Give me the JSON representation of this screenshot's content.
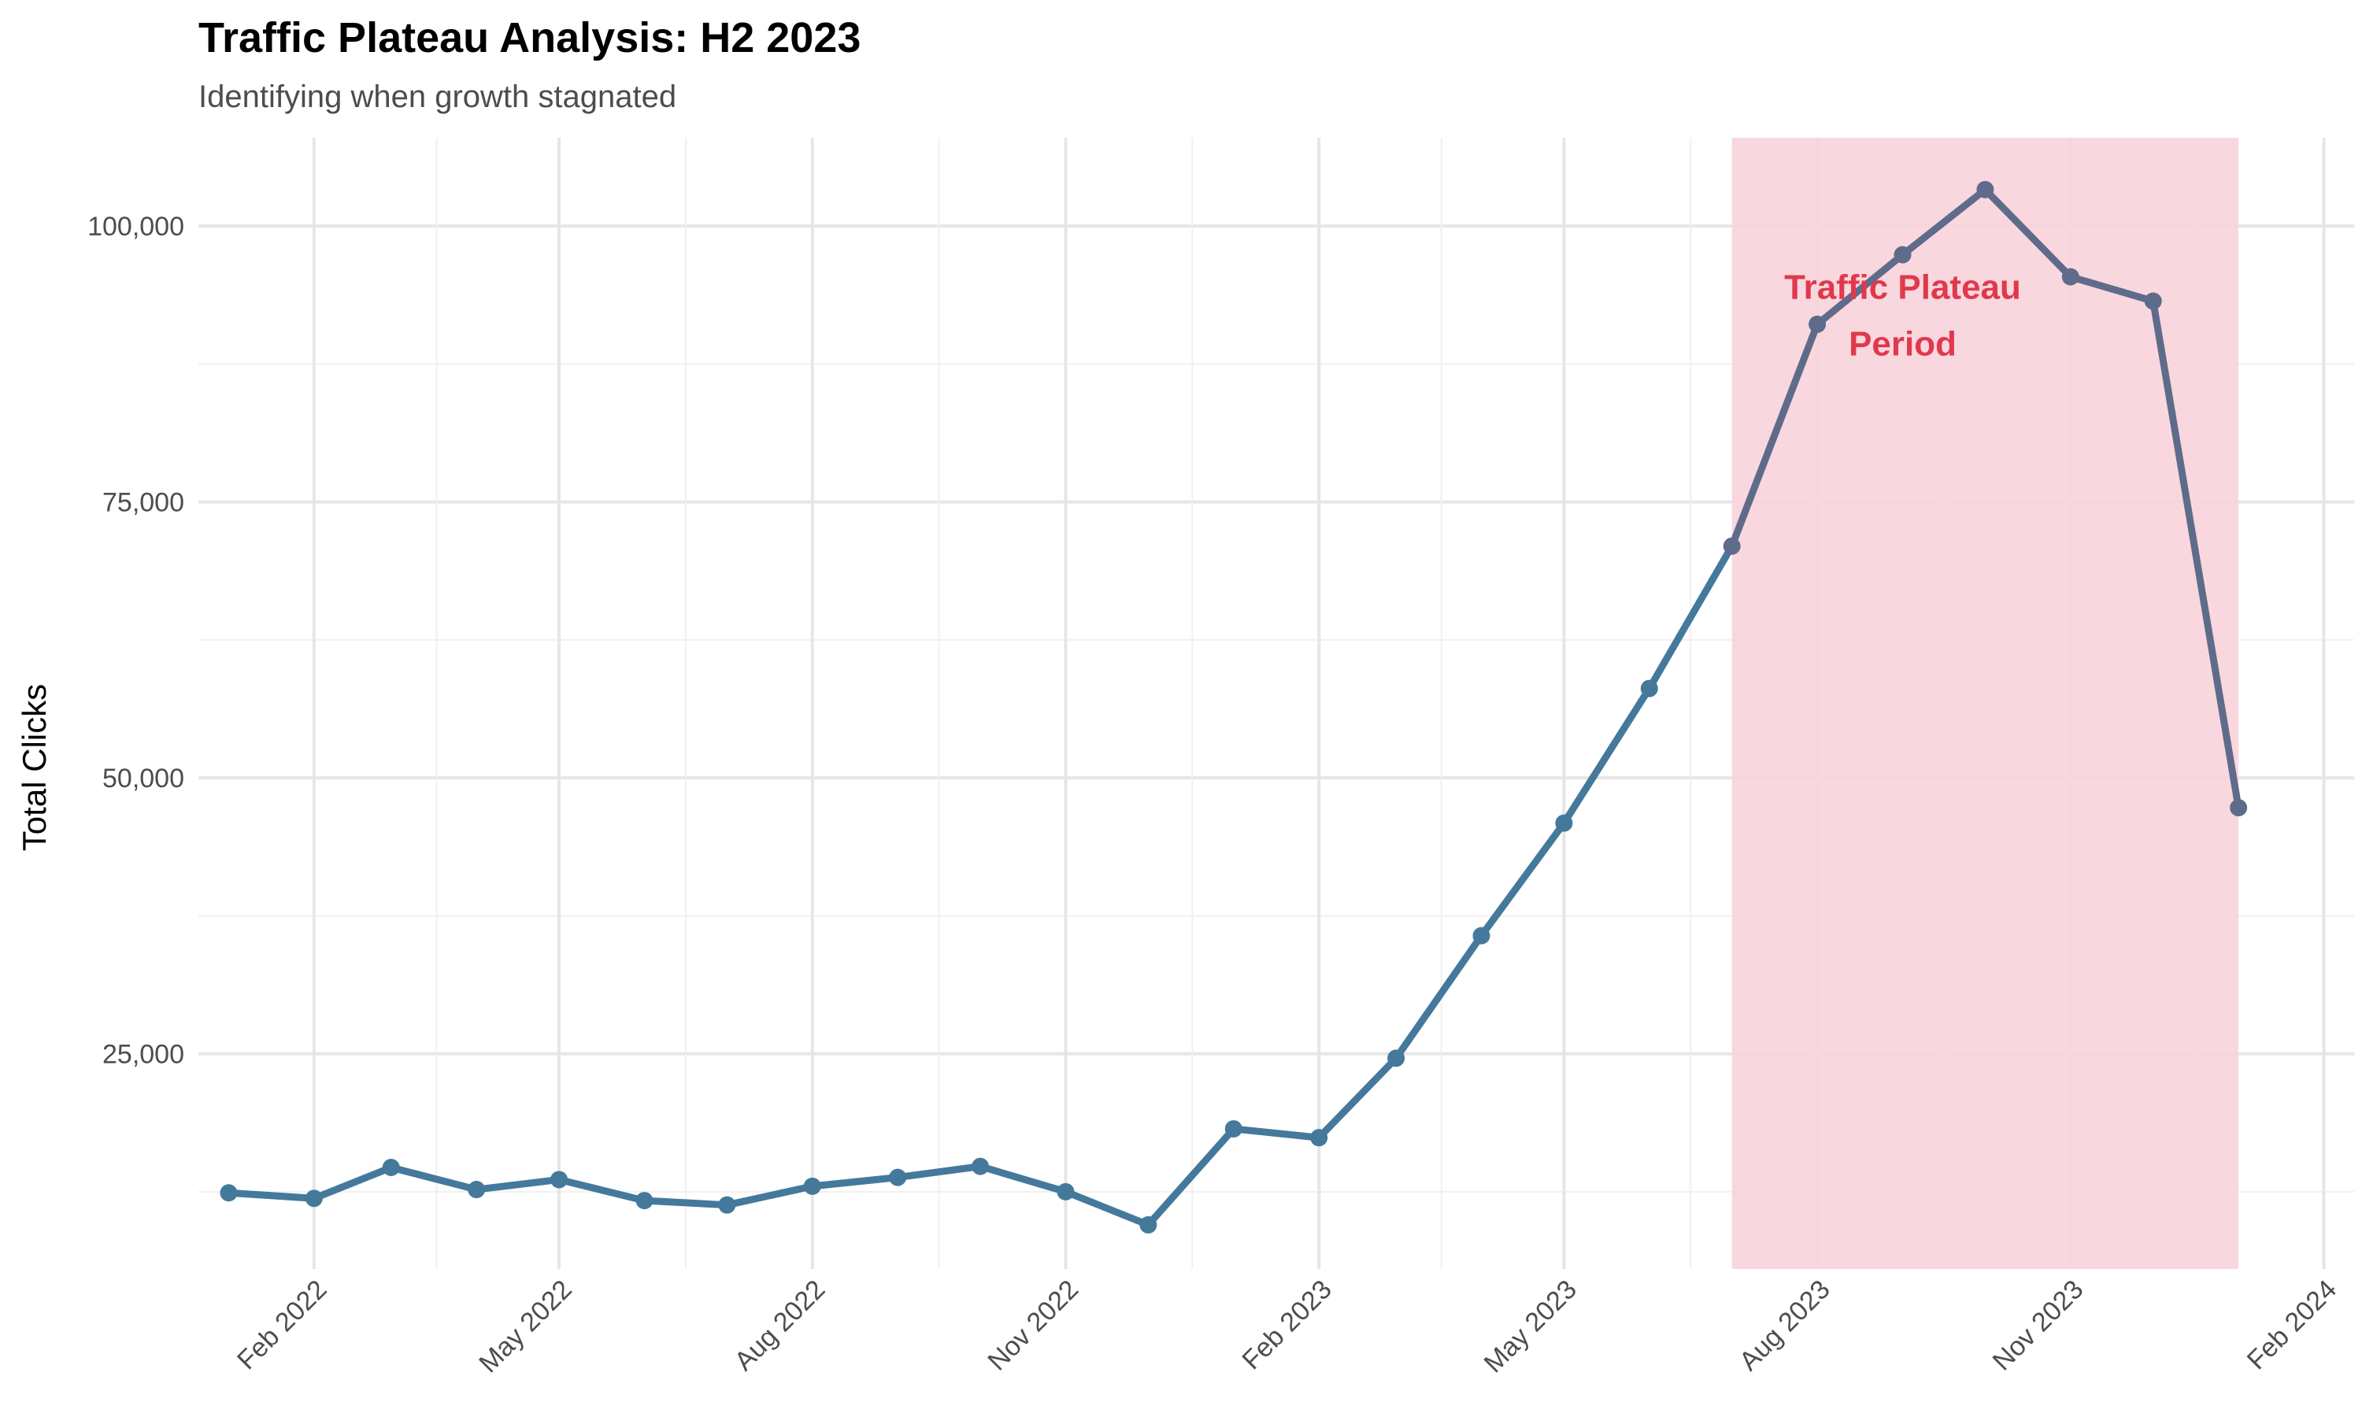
{
  "colors": {
    "line": "#44799b",
    "line_in_band": "#5f6b8a",
    "band": "#f8d3db",
    "annotation": "#e0394c",
    "grid_major": "#e6e6e6",
    "grid_minor": "#f0f0f0"
  },
  "chart_data": {
    "type": "line",
    "title": "Traffic Plateau Analysis: H2 2023",
    "subtitle": "Identifying when growth stagnated",
    "xlabel": "",
    "ylabel": "Total Clicks",
    "x_tick_labels": [
      "Feb 2022",
      "May 2022",
      "Aug 2022",
      "Nov 2022",
      "Feb 2023",
      "May 2023",
      "Aug 2023",
      "Nov 2023",
      "Feb 2024"
    ],
    "x_tick_dates": [
      "2022-02-01",
      "2022-05-01",
      "2022-08-01",
      "2022-11-01",
      "2023-02-01",
      "2023-05-01",
      "2023-08-01",
      "2023-11-01",
      "2024-02-01"
    ],
    "xlim": [
      "2021-12-21",
      "2024-02-12"
    ],
    "y_tick_values": [
      25000,
      50000,
      75000,
      100000
    ],
    "y_tick_labels": [
      "25,000",
      "50,000",
      "75,000",
      "100,000"
    ],
    "ylim": [
      5500,
      108000
    ],
    "grid": true,
    "legend": "none",
    "series": [
      {
        "x": [
          "2022-01-01",
          "2022-02-01",
          "2022-03-01",
          "2022-04-01",
          "2022-05-01",
          "2022-06-01",
          "2022-07-01",
          "2022-08-01",
          "2022-09-01",
          "2022-10-01",
          "2022-11-01",
          "2022-12-01",
          "2023-01-01",
          "2023-02-01",
          "2023-03-01",
          "2023-04-01",
          "2023-05-01",
          "2023-06-01",
          "2023-07-01",
          "2023-08-01",
          "2023-09-01",
          "2023-10-01",
          "2023-11-01",
          "2023-12-01",
          "2024-01-01"
        ],
        "values": [
          12400,
          11900,
          14700,
          12700,
          13600,
          11700,
          11300,
          13000,
          13800,
          14800,
          12500,
          9500,
          18200,
          17400,
          24600,
          35700,
          45900,
          58100,
          71000,
          91100,
          97400,
          103300,
          95400,
          93200,
          47300
        ]
      }
    ],
    "highlight_band": {
      "start": "2023-07-01",
      "end": "2024-01-01",
      "label_line1": "Traffic Plateau",
      "label_line2": "Period",
      "label_x": "2023-09-01",
      "label_y": 92000
    }
  }
}
